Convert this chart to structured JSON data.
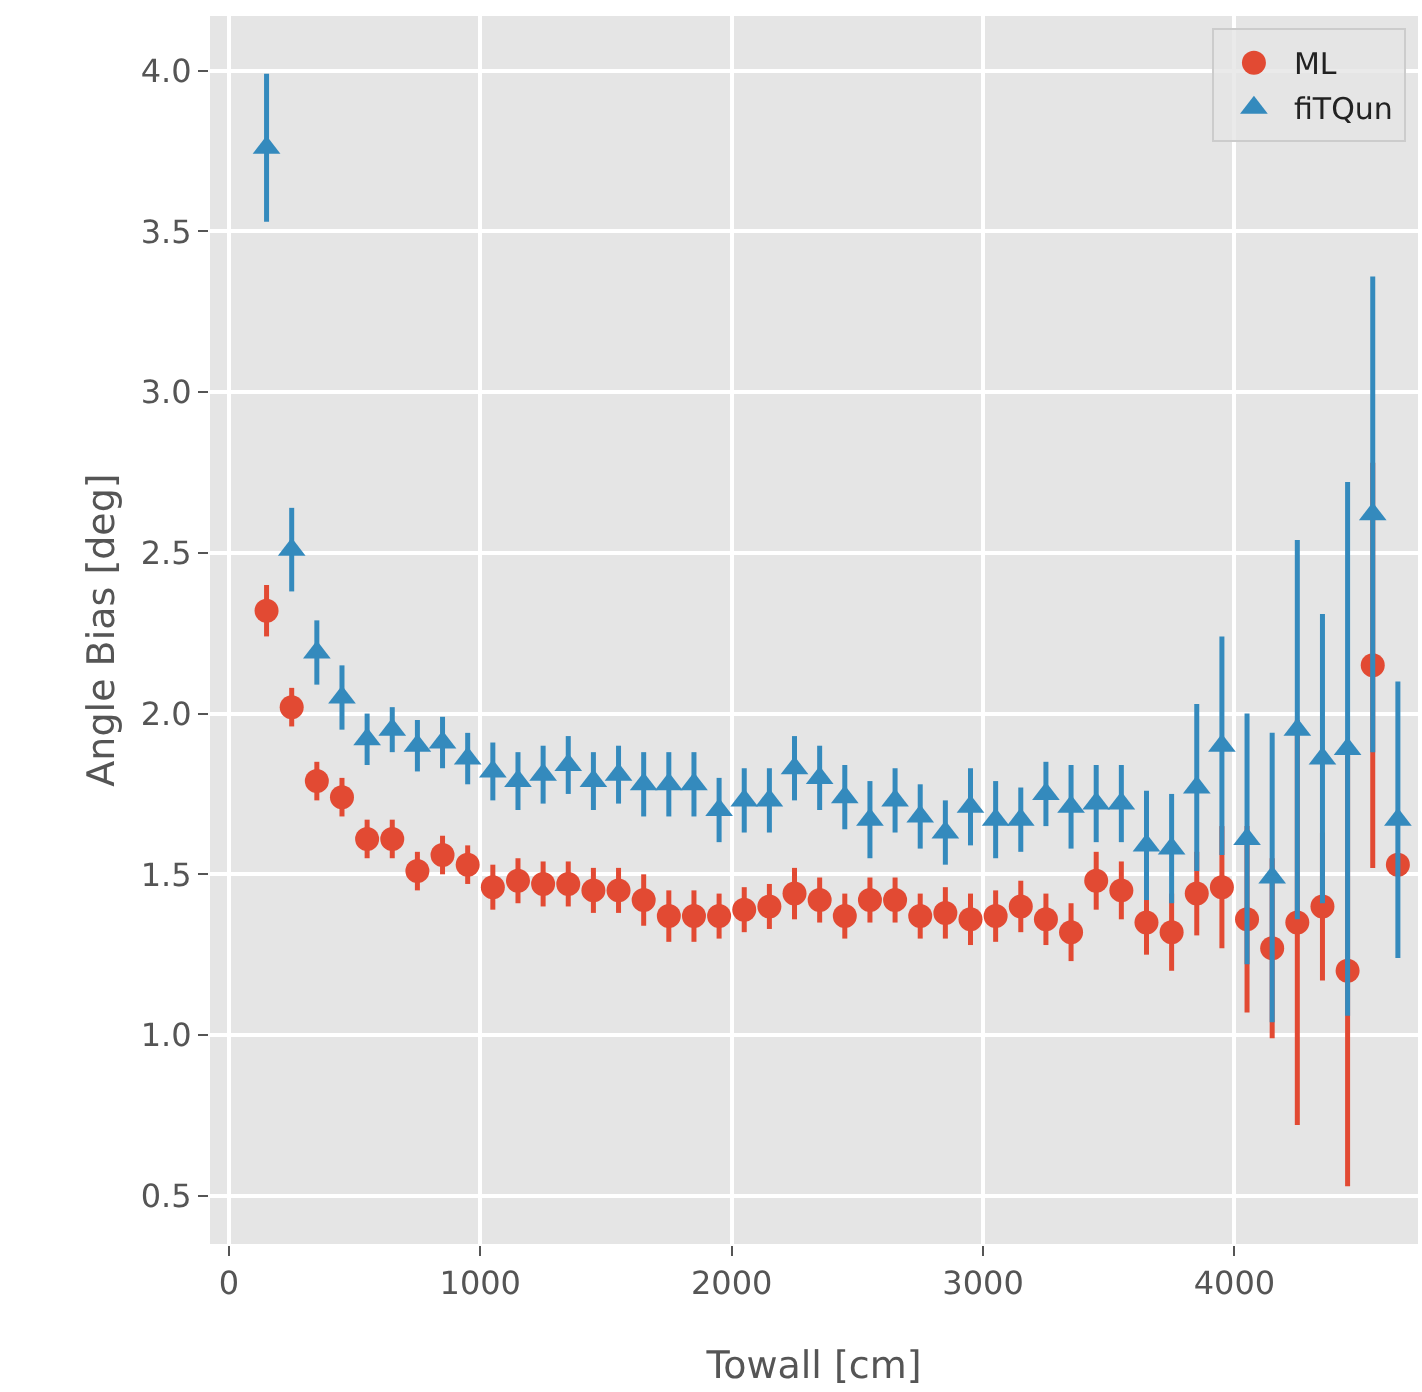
{
  "chart_data": {
    "type": "scatter",
    "xlabel": "Towall [cm]",
    "ylabel": "Angle Bias [deg]",
    "x": [
      150,
      250,
      350,
      450,
      550,
      650,
      750,
      850,
      950,
      1050,
      1150,
      1250,
      1350,
      1450,
      1550,
      1650,
      1750,
      1850,
      1950,
      2050,
      2150,
      2250,
      2350,
      2450,
      2550,
      2650,
      2750,
      2850,
      2950,
      3050,
      3150,
      3250,
      3350,
      3450,
      3550,
      3650,
      3750,
      3850,
      3950,
      4050,
      4150,
      4250,
      4350,
      4450,
      4550,
      4650
    ],
    "series": [
      {
        "name": "ML",
        "color": "#e24a33",
        "marker": "circle",
        "values": [
          2.32,
          2.02,
          1.79,
          1.74,
          1.61,
          1.61,
          1.51,
          1.56,
          1.53,
          1.46,
          1.48,
          1.47,
          1.47,
          1.45,
          1.45,
          1.42,
          1.37,
          1.37,
          1.37,
          1.39,
          1.4,
          1.44,
          1.42,
          1.37,
          1.42,
          1.42,
          1.37,
          1.38,
          1.36,
          1.37,
          1.4,
          1.36,
          1.32,
          1.48,
          1.45,
          1.35,
          1.32,
          1.44,
          1.46,
          1.36,
          1.27,
          1.35,
          1.4,
          1.2,
          2.15,
          1.53
        ],
        "errors": [
          0.08,
          0.06,
          0.06,
          0.06,
          0.06,
          0.06,
          0.06,
          0.06,
          0.06,
          0.07,
          0.07,
          0.07,
          0.07,
          0.07,
          0.07,
          0.08,
          0.08,
          0.08,
          0.07,
          0.07,
          0.07,
          0.08,
          0.07,
          0.07,
          0.07,
          0.07,
          0.07,
          0.08,
          0.08,
          0.08,
          0.08,
          0.08,
          0.09,
          0.09,
          0.09,
          0.1,
          0.12,
          0.13,
          0.19,
          0.29,
          0.28,
          0.63,
          0.23,
          0.67,
          0.63,
          null
        ]
      },
      {
        "name": "fiTQun",
        "color": "#348abd",
        "marker": "triangle",
        "values": [
          3.76,
          2.51,
          2.19,
          2.05,
          1.92,
          1.95,
          1.9,
          1.91,
          1.86,
          1.82,
          1.79,
          1.81,
          1.84,
          1.79,
          1.81,
          1.78,
          1.78,
          1.78,
          1.7,
          1.73,
          1.73,
          1.83,
          1.8,
          1.74,
          1.67,
          1.73,
          1.68,
          1.63,
          1.71,
          1.67,
          1.67,
          1.75,
          1.71,
          1.72,
          1.72,
          1.59,
          1.58,
          1.77,
          1.9,
          1.61,
          1.49,
          1.95,
          1.86,
          1.89,
          2.62,
          1.67
        ],
        "errors": [
          0.23,
          0.13,
          0.1,
          0.1,
          0.08,
          0.07,
          0.08,
          0.08,
          0.08,
          0.09,
          0.09,
          0.09,
          0.09,
          0.09,
          0.09,
          0.1,
          0.1,
          0.1,
          0.1,
          0.1,
          0.1,
          0.1,
          0.1,
          0.1,
          0.12,
          0.1,
          0.1,
          0.1,
          0.12,
          0.12,
          0.1,
          0.1,
          0.13,
          0.12,
          0.12,
          0.17,
          0.17,
          0.26,
          0.34,
          0.39,
          0.45,
          0.59,
          0.45,
          0.83,
          0.74,
          0.43
        ]
      }
    ],
    "xlim": [
      -75,
      4730
    ],
    "xticks": [
      0,
      1000,
      2000,
      3000,
      4000
    ],
    "ylim": [
      0.35,
      4.17
    ],
    "yticks": [
      0.5,
      {
        "value": 1,
        "label": "1.0"
      },
      1.5,
      {
        "value": 2,
        "label": "2.0"
      },
      2.5,
      {
        "value": 3,
        "label": "3.0"
      },
      3.5,
      {
        "value": 4,
        "label": "4.0"
      }
    ],
    "grid": true,
    "legend": "top right"
  }
}
